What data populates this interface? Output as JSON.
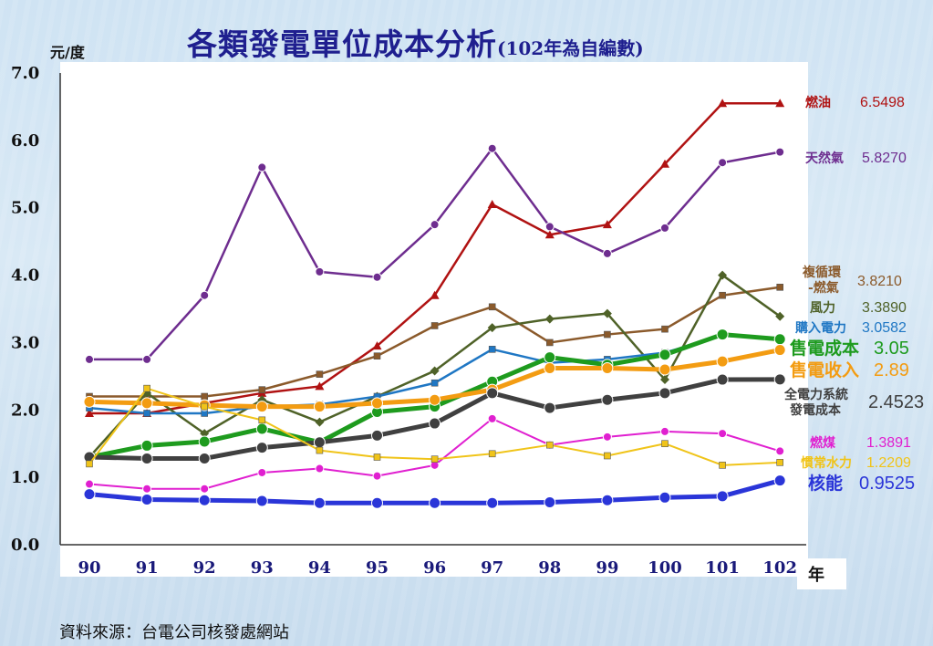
{
  "title": {
    "main": "各類發電單位成本分析",
    "sub": "(102年為自編數)"
  },
  "unit_label": "元/度",
  "source_text": "資料來源：台電公司核發處網站",
  "chart_data": {
    "type": "line",
    "xlabel": "年",
    "ylabel": "元/度",
    "ylim": [
      0,
      7.0
    ],
    "yticks": [
      "0.0",
      "1.0",
      "2.0",
      "3.0",
      "4.0",
      "5.0",
      "6.0",
      "7.0"
    ],
    "categories": [
      "90",
      "91",
      "92",
      "93",
      "94",
      "95",
      "96",
      "97",
      "98",
      "99",
      "100",
      "101",
      "102"
    ],
    "grid": false,
    "legend": "right-end labels",
    "series": [
      {
        "name": "燃油",
        "end_label": "6.5498",
        "color": "#b01212",
        "width": 2.5,
        "marker": "triangle",
        "values": [
          1.95,
          1.95,
          2.1,
          2.25,
          2.35,
          2.95,
          3.7,
          5.05,
          4.6,
          4.75,
          5.65,
          6.55,
          6.5498
        ]
      },
      {
        "name": "天然氣",
        "end_label": "5.8270",
        "color": "#6e2d8f",
        "width": 2.5,
        "marker": "circle",
        "values": [
          2.75,
          2.75,
          3.7,
          5.6,
          4.05,
          3.97,
          4.75,
          5.88,
          4.72,
          4.32,
          4.7,
          5.67,
          5.827
        ]
      },
      {
        "name": "複循環\n-燃氣",
        "end_label": "3.8210",
        "color": "#8b5a2b",
        "width": 2.5,
        "marker": "square",
        "values": [
          2.2,
          2.2,
          2.2,
          2.3,
          2.53,
          2.8,
          3.25,
          3.53,
          3.0,
          3.12,
          3.2,
          3.7,
          3.821
        ]
      },
      {
        "name": "風力",
        "end_label": "3.3890",
        "color": "#4f6228",
        "width": 2.5,
        "marker": "diamond",
        "values": [
          1.3,
          2.25,
          1.65,
          2.15,
          1.82,
          2.2,
          2.58,
          3.22,
          3.35,
          3.43,
          2.45,
          4.0,
          3.389
        ]
      },
      {
        "name": "購入電力",
        "end_label": "3.0582",
        "color": "#1f77c4",
        "width": 2.5,
        "marker": "square",
        "values": [
          2.03,
          1.95,
          1.95,
          2.05,
          2.08,
          2.2,
          2.4,
          2.9,
          2.7,
          2.75,
          2.85,
          3.1,
          3.0582
        ]
      },
      {
        "name": "售電成本",
        "end_label": "3.05",
        "color": "#1e9b1e",
        "width": 5,
        "marker": "circle",
        "values": [
          1.3,
          1.47,
          1.53,
          1.72,
          1.52,
          1.97,
          2.05,
          2.42,
          2.78,
          2.67,
          2.82,
          3.12,
          3.05
        ]
      },
      {
        "name": "售電收入",
        "end_label": "2.89",
        "color": "#f39c12",
        "width": 5,
        "marker": "circle",
        "values": [
          2.12,
          2.1,
          2.07,
          2.05,
          2.05,
          2.1,
          2.15,
          2.3,
          2.62,
          2.62,
          2.6,
          2.72,
          2.89
        ]
      },
      {
        "name": "全電力系統\n發電成本",
        "end_label": "2.4523",
        "color": "#404040",
        "width": 5,
        "marker": "circle",
        "values": [
          1.3,
          1.28,
          1.28,
          1.44,
          1.52,
          1.62,
          1.8,
          2.25,
          2.03,
          2.15,
          2.25,
          2.45,
          2.4523
        ]
      },
      {
        "name": "燃煤",
        "end_label": "1.3891",
        "color": "#e020d0",
        "width": 2,
        "marker": "circle",
        "values": [
          0.9,
          0.83,
          0.83,
          1.07,
          1.13,
          1.02,
          1.18,
          1.87,
          1.48,
          1.6,
          1.68,
          1.65,
          1.3891
        ]
      },
      {
        "name": "慣常水力",
        "end_label": "1.2209",
        "color": "#f0c419",
        "width": 2,
        "marker": "square",
        "values": [
          1.2,
          2.32,
          2.05,
          1.85,
          1.4,
          1.3,
          1.27,
          1.35,
          1.48,
          1.32,
          1.5,
          1.18,
          1.2209
        ]
      },
      {
        "name": "核能",
        "end_label": "0.9525",
        "color": "#2a35d8",
        "width": 5,
        "marker": "circle",
        "values": [
          0.75,
          0.67,
          0.66,
          0.65,
          0.62,
          0.62,
          0.62,
          0.62,
          0.63,
          0.66,
          0.7,
          0.72,
          0.9525
        ]
      }
    ]
  }
}
